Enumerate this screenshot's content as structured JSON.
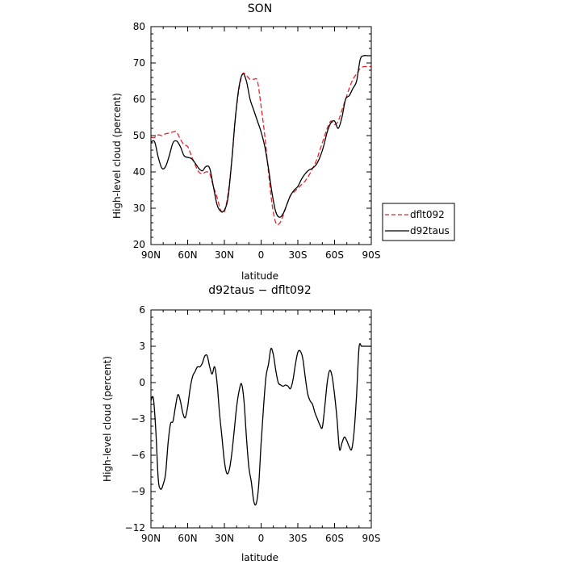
{
  "chart_data": [
    {
      "type": "line",
      "title": "SON",
      "xlabel": "latitude",
      "ylabel": "High-level cloud (percent)",
      "xlim": [
        90,
        -90
      ],
      "ylim": [
        20,
        80
      ],
      "x_ticks": [
        90,
        60,
        30,
        0,
        -30,
        -60,
        -90
      ],
      "x_tick_labels": [
        "90N",
        "60N",
        "30N",
        "0",
        "30S",
        "60S",
        "90S"
      ],
      "y_ticks": [
        20,
        30,
        40,
        50,
        60,
        70,
        80
      ],
      "y_tick_labels": [
        "20",
        "30",
        "40",
        "50",
        "60",
        "70",
        "80"
      ],
      "legend_position": "right",
      "series": [
        {
          "name": "dflt092",
          "color": "#e8242c",
          "dash": "dashed",
          "x": [
            90,
            87,
            84,
            81,
            78,
            75,
            72,
            69,
            66,
            63,
            60,
            57,
            54,
            51,
            48,
            45,
            42,
            39,
            36,
            33,
            30,
            27,
            24,
            21,
            18,
            15,
            12,
            9,
            6,
            3,
            0,
            -3,
            -6,
            -9,
            -12,
            -15,
            -18,
            -21,
            -24,
            -27,
            -30,
            -33,
            -36,
            -39,
            -42,
            -45,
            -48,
            -51,
            -54,
            -57,
            -60,
            -63,
            -66,
            -69,
            -72,
            -75,
            -78,
            -81,
            -84,
            -87,
            -90
          ],
          "y": [
            49.5,
            49.5,
            50.2,
            50,
            50.5,
            50.7,
            51,
            51,
            49,
            47.5,
            47,
            44.5,
            42,
            40,
            39.5,
            40,
            39.5,
            36,
            33,
            29.5,
            29,
            34,
            43,
            55,
            63,
            67,
            66.5,
            65.5,
            65.5,
            65,
            58,
            50,
            40,
            31,
            26,
            25.8,
            28,
            31,
            33.5,
            34.5,
            35.5,
            36.5,
            37.5,
            39,
            41,
            43,
            46,
            49,
            52,
            54,
            53,
            54,
            57,
            60,
            63,
            65.5,
            67,
            68.5,
            69,
            69,
            69
          ]
        },
        {
          "name": "d92taus",
          "color": "#000000",
          "dash": "solid",
          "x": [
            90,
            87,
            84,
            81,
            78,
            75,
            72,
            69,
            66,
            63,
            60,
            57,
            54,
            51,
            48,
            45,
            42,
            39,
            36,
            33,
            30,
            27,
            24,
            21,
            18,
            15,
            12,
            9,
            6,
            3,
            0,
            -3,
            -6,
            -9,
            -12,
            -15,
            -18,
            -21,
            -24,
            -27,
            -30,
            -33,
            -36,
            -39,
            -42,
            -45,
            -48,
            -51,
            -54,
            -57,
            -60,
            -63,
            -66,
            -69,
            -72,
            -75,
            -78,
            -81,
            -84,
            -87,
            -90
          ],
          "y": [
            48.2,
            48.3,
            44,
            41,
            41.5,
            44.5,
            48,
            48.5,
            47,
            44.5,
            44,
            43.7,
            42.5,
            41,
            40.3,
            41.5,
            41,
            36,
            31,
            29.2,
            29.5,
            33,
            43,
            55,
            63.5,
            67,
            65,
            60,
            57,
            54,
            51,
            47,
            41,
            34,
            29,
            27.5,
            28.5,
            31,
            33.5,
            35,
            36,
            38,
            39.5,
            40.5,
            41,
            42,
            44,
            47,
            51,
            53.5,
            54,
            52,
            55,
            60,
            61,
            63,
            65,
            71,
            72,
            72,
            72
          ]
        }
      ]
    },
    {
      "type": "line",
      "title": "d92taus − dflt092",
      "xlabel": "latitude",
      "ylabel": "High-level cloud (percent)",
      "xlim": [
        90,
        -90
      ],
      "ylim": [
        -12,
        6
      ],
      "x_ticks": [
        90,
        60,
        30,
        0,
        -30,
        -60,
        -90
      ],
      "x_tick_labels": [
        "90N",
        "60N",
        "30N",
        "0",
        "30S",
        "60S",
        "90S"
      ],
      "y_ticks": [
        -12,
        -9,
        -6,
        -3,
        0,
        3,
        6
      ],
      "y_tick_labels": [
        "−12",
        "−9",
        "−6",
        "−3",
        "0",
        "3",
        "6"
      ],
      "series": [
        {
          "color": "#000000",
          "dash": "solid",
          "x": [
            90,
            88,
            86,
            84,
            82,
            80,
            78,
            76,
            74,
            72,
            70,
            68,
            66,
            64,
            62,
            60,
            58,
            56,
            54,
            52,
            50,
            48,
            46,
            44,
            42,
            40,
            38,
            36,
            34,
            32,
            30,
            28,
            26,
            24,
            22,
            20,
            18,
            16,
            14,
            12,
            10,
            8,
            6,
            4,
            2,
            0,
            -2,
            -4,
            -6,
            -8,
            -10,
            -12,
            -14,
            -16,
            -18,
            -20,
            -22,
            -24,
            -26,
            -28,
            -30,
            -32,
            -34,
            -36,
            -38,
            -40,
            -42,
            -44,
            -46,
            -48,
            -50,
            -52,
            -54,
            -56,
            -58,
            -60,
            -62,
            -64,
            -66,
            -68,
            -70,
            -72,
            -74,
            -76,
            -78,
            -80,
            -82,
            -84,
            -86,
            -88,
            -90
          ],
          "y": [
            -1.5,
            -1.3,
            -4,
            -8,
            -8.8,
            -8.4,
            -7.5,
            -5,
            -3.4,
            -3.2,
            -2,
            -1,
            -1.5,
            -2.5,
            -2.9,
            -2,
            -0.5,
            0.5,
            0.9,
            1.3,
            1.3,
            1.6,
            2.2,
            2.2,
            1.3,
            0.7,
            1.3,
            0,
            -2.5,
            -4.5,
            -6.5,
            -7.5,
            -7.2,
            -5.9,
            -4,
            -2,
            -0.7,
            -0.1,
            -1.5,
            -4.5,
            -7,
            -8.2,
            -9.8,
            -10,
            -8.5,
            -5,
            -2,
            0.5,
            1.5,
            2.8,
            2.3,
            1,
            0,
            -0.2,
            -0.3,
            -0.2,
            -0.3,
            -0.5,
            0.2,
            1.5,
            2.5,
            2.6,
            2,
            0.5,
            -0.9,
            -1.5,
            -1.8,
            -2.5,
            -3,
            -3.5,
            -3.7,
            -2,
            0,
            1,
            0.5,
            -1,
            -3,
            -5.5,
            -5,
            -4.5,
            -4.8,
            -5.3,
            -5.5,
            -4,
            -1,
            2.9,
            3,
            3,
            3,
            3,
            3
          ]
        }
      ]
    }
  ]
}
